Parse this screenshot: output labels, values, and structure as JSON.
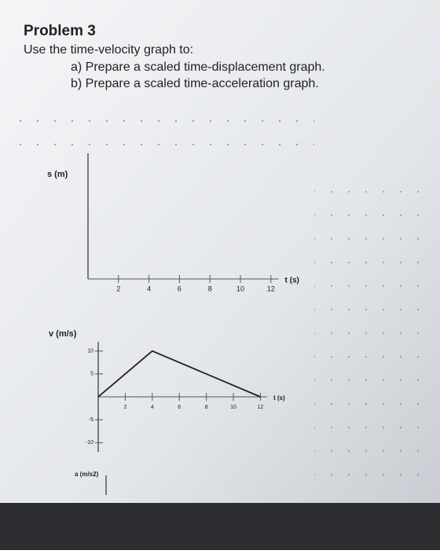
{
  "header": {
    "title": "Problem 3",
    "instruction": "Use the time-velocity graph to:"
  },
  "items": [
    "a) Prepare a scaled time-displacement graph.",
    "b) Prepare a scaled time-acceleration graph."
  ],
  "chart_data": [
    {
      "type": "axes",
      "ylabel": "s (m)",
      "xlabel": "t (s)",
      "xlim": [
        0,
        12.5
      ],
      "xticks": [
        2,
        4,
        6,
        8,
        10,
        12
      ]
    },
    {
      "type": "line",
      "ylabel": "v (m/s)",
      "xlabel": "t (s)",
      "x": [
        0,
        4,
        12
      ],
      "values": [
        0,
        10,
        0
      ],
      "color": "#222222",
      "xlim": [
        0,
        12.5
      ],
      "xticks": [
        2,
        4,
        6,
        8,
        10,
        12
      ],
      "ylim": [
        -12,
        12
      ],
      "yticks": [
        10,
        5,
        -5,
        -10
      ]
    },
    {
      "type": "axes",
      "ylabel": "a (m/s2)"
    }
  ]
}
